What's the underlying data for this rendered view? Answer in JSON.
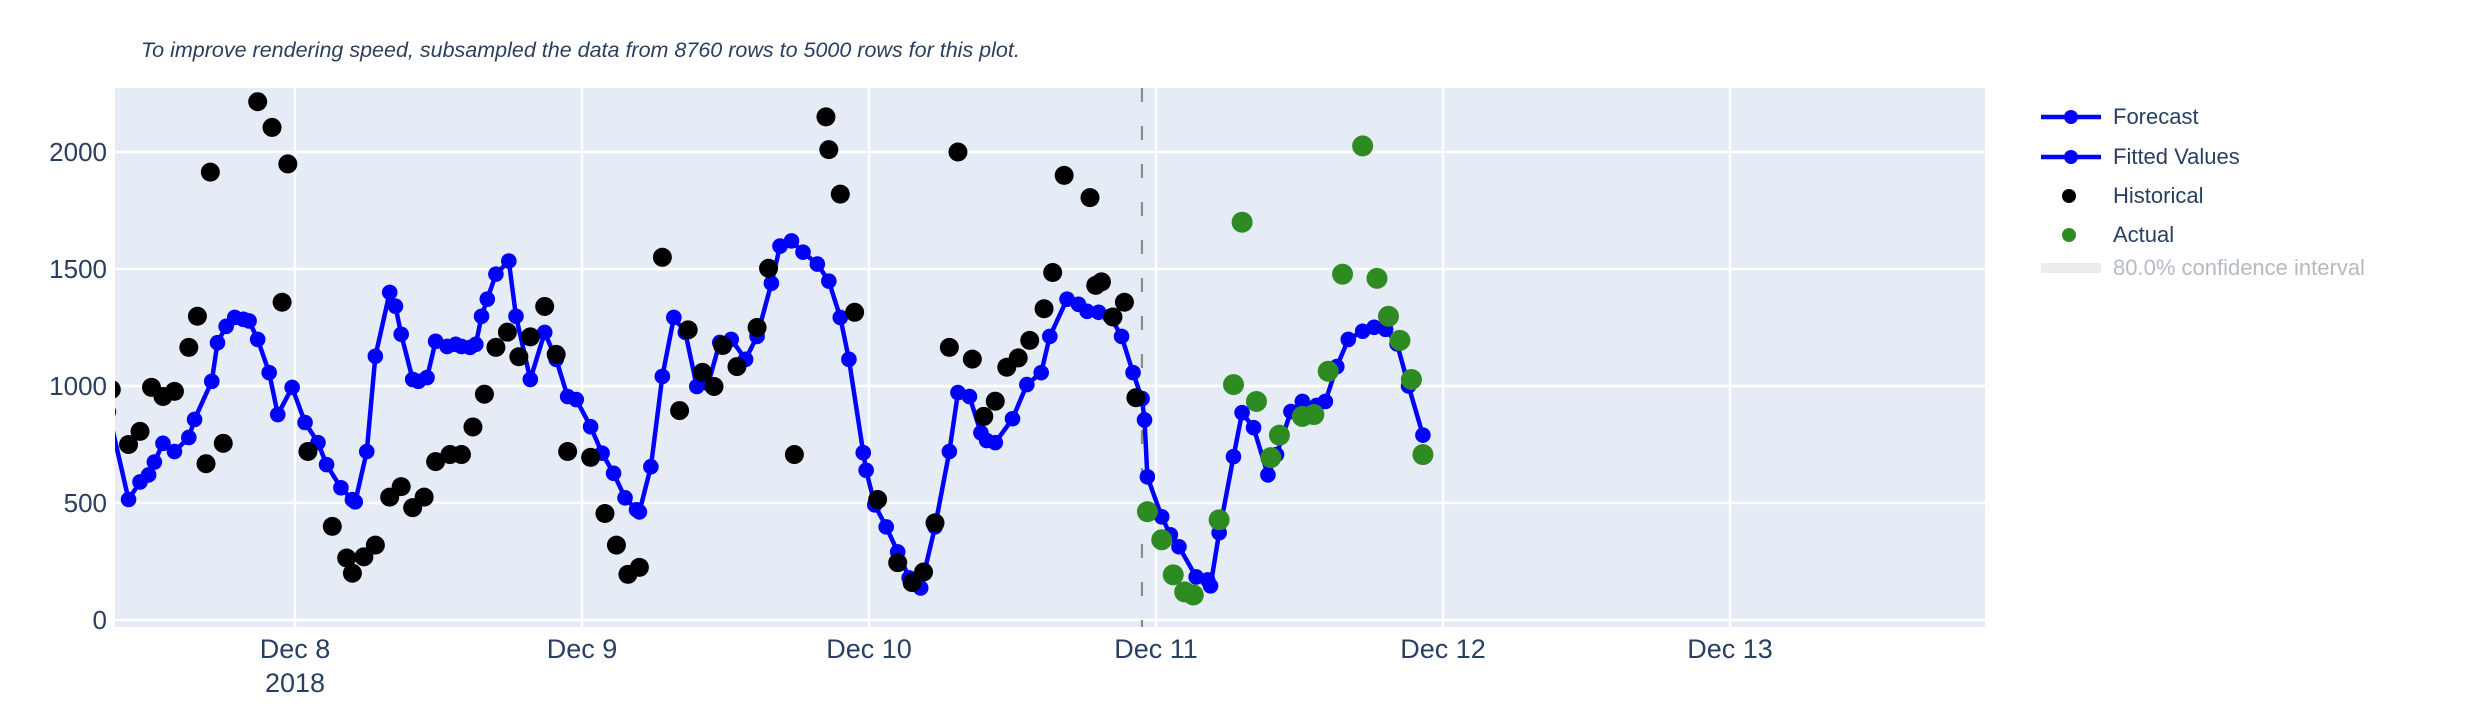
{
  "annotation_title": "To improve rendering speed, subsampled the data from 8760 rows to 5000 rows for this plot.",
  "colors": {
    "paper": "#ffffff",
    "plot_background": "#e5ecf6",
    "gridline": "#ffffff",
    "forecast_line": "#0000ff",
    "fitted_line": "#0000ff",
    "historical_dot": "#000000",
    "actual_dot": "#2e8b22",
    "divider_dash": "#8b8b8b",
    "tick_text": "#2a3f5f",
    "dimmed_legend_text": "#b4bac4",
    "ci_swatch": "#ececec"
  },
  "legend": {
    "items": [
      {
        "label": "Forecast",
        "swatch": "line-marker",
        "color": "#0000ff",
        "dimmed": false
      },
      {
        "label": "Fitted Values",
        "swatch": "line-marker",
        "color": "#0000ff",
        "dimmed": false
      },
      {
        "label": "Historical",
        "swatch": "dot",
        "color": "#000000",
        "dimmed": false
      },
      {
        "label": "Actual",
        "swatch": "dot",
        "color": "#2e8b22",
        "dimmed": false
      },
      {
        "label": "80.0% confidence interval",
        "swatch": "band",
        "color": "#ececec",
        "dimmed": true
      }
    ]
  },
  "chart_data": {
    "type": "line",
    "title": "To improve rendering speed, subsampled the data from 8760 rows to 5000 rows for this plot.",
    "x_axis": {
      "tick_labels": [
        "Dec 8",
        "Dec 9",
        "Dec 10",
        "Dec 11",
        "Dec 12",
        "Dec 13"
      ],
      "year_sublabel": "2018",
      "year_sublabel_under_tick": "Dec 8",
      "grid": true,
      "domain_days_rel_dec8": [
        -0.653,
        5.89
      ]
    },
    "y_axis": {
      "tick_labels": [
        "0",
        "500",
        "1000",
        "1500",
        "2000"
      ],
      "tick_values": [
        0,
        500,
        1000,
        1500,
        2000
      ],
      "range": [
        -30,
        2273
      ],
      "grid": true
    },
    "forecast_start_day": 2.951,
    "legend_position": "right",
    "series": [
      {
        "name": "Fitted Values",
        "mode": "lines+markers",
        "color": "#0000ff",
        "points": [
          [
            -0.65,
            890
          ],
          [
            -0.58,
            515
          ],
          [
            -0.54,
            590
          ],
          [
            -0.51,
            620
          ],
          [
            -0.49,
            675
          ],
          [
            -0.46,
            755
          ],
          [
            -0.42,
            720
          ],
          [
            -0.37,
            780
          ],
          [
            -0.35,
            857
          ],
          [
            -0.29,
            1020
          ],
          [
            -0.27,
            1185
          ],
          [
            -0.24,
            1255
          ],
          [
            -0.21,
            1293
          ],
          [
            -0.18,
            1285
          ],
          [
            -0.16,
            1278
          ],
          [
            -0.13,
            1199
          ],
          [
            -0.09,
            1057
          ],
          [
            -0.06,
            878
          ],
          [
            -0.01,
            994
          ],
          [
            0.035,
            844
          ],
          [
            0.08,
            758
          ],
          [
            0.11,
            664
          ],
          [
            0.16,
            565
          ],
          [
            0.2,
            514
          ],
          [
            0.21,
            505
          ],
          [
            0.25,
            720
          ],
          [
            0.28,
            1127
          ],
          [
            0.33,
            1400
          ],
          [
            0.35,
            1341
          ],
          [
            0.37,
            1221
          ],
          [
            0.41,
            1028
          ],
          [
            0.43,
            1020
          ],
          [
            0.46,
            1036
          ],
          [
            0.49,
            1191
          ],
          [
            0.53,
            1169
          ],
          [
            0.56,
            1178
          ],
          [
            0.58,
            1169
          ],
          [
            0.61,
            1165
          ],
          [
            0.63,
            1178
          ],
          [
            0.65,
            1298
          ],
          [
            0.67,
            1371
          ],
          [
            0.7,
            1478
          ],
          [
            0.745,
            1534
          ],
          [
            0.77,
            1298
          ],
          [
            0.82,
            1028
          ],
          [
            0.87,
            1229
          ],
          [
            0.91,
            1114
          ],
          [
            0.95,
            955
          ],
          [
            0.98,
            942
          ],
          [
            1.03,
            826
          ],
          [
            1.07,
            713
          ],
          [
            1.11,
            627
          ],
          [
            1.15,
            522
          ],
          [
            1.19,
            471
          ],
          [
            1.2,
            462
          ],
          [
            1.24,
            655
          ],
          [
            1.28,
            1041
          ],
          [
            1.32,
            1293
          ],
          [
            1.36,
            1229
          ],
          [
            1.4,
            998
          ],
          [
            1.44,
            1011
          ],
          [
            1.48,
            1186
          ],
          [
            1.52,
            1199
          ],
          [
            1.57,
            1114
          ],
          [
            1.61,
            1212
          ],
          [
            1.66,
            1439
          ],
          [
            1.69,
            1598
          ],
          [
            1.73,
            1620
          ],
          [
            1.77,
            1572
          ],
          [
            1.82,
            1521
          ],
          [
            1.86,
            1448
          ],
          [
            1.9,
            1293
          ],
          [
            1.93,
            1114
          ],
          [
            1.98,
            715
          ],
          [
            1.99,
            640
          ],
          [
            2.02,
            492
          ],
          [
            2.06,
            398
          ],
          [
            2.1,
            291
          ],
          [
            2.14,
            180
          ],
          [
            2.18,
            137
          ],
          [
            2.23,
            398
          ],
          [
            2.28,
            720
          ],
          [
            2.31,
            972
          ],
          [
            2.35,
            955
          ],
          [
            2.39,
            800
          ],
          [
            2.41,
            767
          ],
          [
            2.44,
            758
          ],
          [
            2.5,
            860
          ],
          [
            2.55,
            1006
          ],
          [
            2.6,
            1057
          ],
          [
            2.63,
            1212
          ],
          [
            2.69,
            1371
          ],
          [
            2.73,
            1349
          ],
          [
            2.76,
            1319
          ],
          [
            2.8,
            1315
          ],
          [
            2.84,
            1298
          ],
          [
            2.88,
            1212
          ],
          [
            2.92,
            1057
          ],
          [
            2.951,
            946
          ]
        ]
      },
      {
        "name": "Forecast",
        "mode": "lines+markers",
        "color": "#0000ff",
        "points": [
          [
            2.951,
            946
          ],
          [
            2.96,
            855
          ],
          [
            2.97,
            612
          ],
          [
            3.02,
            441
          ],
          [
            3.05,
            364
          ],
          [
            3.08,
            313
          ],
          [
            3.14,
            184
          ],
          [
            3.18,
            171
          ],
          [
            3.19,
            146
          ],
          [
            3.22,
            373
          ],
          [
            3.27,
            698
          ],
          [
            3.3,
            886
          ],
          [
            3.34,
            822
          ],
          [
            3.39,
            620
          ],
          [
            3.42,
            707
          ],
          [
            3.47,
            891
          ],
          [
            3.51,
            934
          ],
          [
            3.56,
            917
          ],
          [
            3.59,
            934
          ],
          [
            3.63,
            1083
          ],
          [
            3.67,
            1199
          ],
          [
            3.72,
            1234
          ],
          [
            3.76,
            1251
          ],
          [
            3.8,
            1242
          ],
          [
            3.84,
            1180
          ],
          [
            3.88,
            1000
          ],
          [
            3.93,
            790
          ]
        ]
      },
      {
        "name": "Historical",
        "mode": "markers",
        "color": "#000000",
        "points": [
          [
            -0.64,
            985
          ],
          [
            -0.58,
            750
          ],
          [
            -0.54,
            806
          ],
          [
            -0.5,
            994
          ],
          [
            -0.46,
            955
          ],
          [
            -0.42,
            977
          ],
          [
            -0.37,
            1165
          ],
          [
            -0.34,
            1298
          ],
          [
            -0.31,
            668
          ],
          [
            -0.295,
            1914
          ],
          [
            -0.25,
            755
          ],
          [
            -0.13,
            2215
          ],
          [
            -0.08,
            2105
          ],
          [
            -0.045,
            1358
          ],
          [
            -0.025,
            1949
          ],
          [
            0.045,
            720
          ],
          [
            0.13,
            400
          ],
          [
            0.18,
            265
          ],
          [
            0.2,
            200
          ],
          [
            0.24,
            270
          ],
          [
            0.28,
            320
          ],
          [
            0.33,
            525
          ],
          [
            0.37,
            570
          ],
          [
            0.41,
            480
          ],
          [
            0.45,
            525
          ],
          [
            0.49,
            677
          ],
          [
            0.54,
            707
          ],
          [
            0.58,
            707
          ],
          [
            0.62,
            825
          ],
          [
            0.66,
            965
          ],
          [
            0.7,
            1165
          ],
          [
            0.74,
            1230
          ],
          [
            0.78,
            1125
          ],
          [
            0.82,
            1210
          ],
          [
            0.87,
            1340
          ],
          [
            0.91,
            1135
          ],
          [
            0.95,
            720
          ],
          [
            1.03,
            695
          ],
          [
            1.08,
            455
          ],
          [
            1.12,
            320
          ],
          [
            1.16,
            195
          ],
          [
            1.2,
            225
          ],
          [
            1.28,
            1550
          ],
          [
            1.34,
            895
          ],
          [
            1.37,
            1240
          ],
          [
            1.42,
            1058
          ],
          [
            1.46,
            998
          ],
          [
            1.49,
            1173
          ],
          [
            1.54,
            1083
          ],
          [
            1.61,
            1250
          ],
          [
            1.65,
            1503
          ],
          [
            1.74,
            707
          ],
          [
            1.85,
            2150
          ],
          [
            1.86,
            2010
          ],
          [
            1.9,
            1820
          ],
          [
            1.95,
            1315
          ],
          [
            2.03,
            515
          ],
          [
            2.1,
            245
          ],
          [
            2.15,
            160
          ],
          [
            2.19,
            205
          ],
          [
            2.23,
            415
          ],
          [
            2.28,
            1165
          ],
          [
            2.31,
            2000
          ],
          [
            2.36,
            1115
          ],
          [
            2.4,
            870
          ],
          [
            2.44,
            935
          ],
          [
            2.48,
            1080
          ],
          [
            2.52,
            1120
          ],
          [
            2.56,
            1195
          ],
          [
            2.61,
            1330
          ],
          [
            2.64,
            1485
          ],
          [
            2.68,
            1900
          ],
          [
            2.77,
            1805
          ],
          [
            2.79,
            1430
          ],
          [
            2.81,
            1445
          ],
          [
            2.85,
            1295
          ],
          [
            2.89,
            1358
          ],
          [
            2.93,
            950
          ]
        ]
      },
      {
        "name": "Actual",
        "mode": "markers",
        "color": "#2e8b22",
        "points": [
          [
            2.97,
            463
          ],
          [
            3.02,
            343
          ],
          [
            3.06,
            193
          ],
          [
            3.1,
            120
          ],
          [
            3.13,
            107
          ],
          [
            3.22,
            428
          ],
          [
            3.27,
            1006
          ],
          [
            3.3,
            1700
          ],
          [
            3.35,
            934
          ],
          [
            3.4,
            694
          ],
          [
            3.43,
            790
          ],
          [
            3.51,
            870
          ],
          [
            3.55,
            878
          ],
          [
            3.6,
            1063
          ],
          [
            3.65,
            1478
          ],
          [
            3.72,
            2026
          ],
          [
            3.77,
            1460
          ],
          [
            3.81,
            1298
          ],
          [
            3.85,
            1195
          ],
          [
            3.89,
            1028
          ],
          [
            3.93,
            707
          ]
        ]
      },
      {
        "name": "80.0% confidence interval",
        "mode": "band",
        "color": "#ececec",
        "hidden": true,
        "points": []
      }
    ]
  }
}
